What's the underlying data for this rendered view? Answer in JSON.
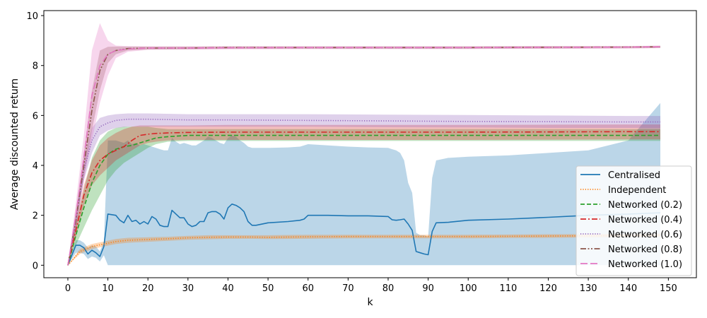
{
  "chart_data": {
    "type": "line",
    "xlabel": "k",
    "ylabel": "Average discounted return",
    "xlim": [
      -6,
      157
    ],
    "ylim": [
      -0.5,
      10.2
    ],
    "xticks": [
      0,
      10,
      20,
      30,
      40,
      50,
      60,
      70,
      80,
      90,
      100,
      110,
      120,
      130,
      140,
      150
    ],
    "yticks": [
      0,
      2,
      4,
      6,
      8,
      10
    ],
    "grid": false,
    "legend_position": "lower-right",
    "series": [
      {
        "name": "Centralised",
        "color": "#1f77b4",
        "style": "solid",
        "x": [
          0,
          2,
          3,
          4,
          5,
          6,
          7,
          8,
          9,
          10,
          12,
          13,
          14,
          15,
          16,
          17,
          18,
          19,
          20,
          21,
          22,
          23,
          24,
          25,
          26,
          27,
          28,
          29,
          30,
          31,
          32,
          33,
          34,
          35,
          36,
          37,
          38,
          39,
          40,
          41,
          42,
          43,
          44,
          45,
          46,
          47,
          50,
          55,
          58,
          59,
          60,
          65,
          70,
          75,
          80,
          81,
          82,
          83,
          84,
          85,
          86,
          87,
          88,
          89,
          90,
          91,
          92,
          95,
          100,
          110,
          120,
          130,
          140,
          148
        ],
        "y": [
          0,
          0.8,
          0.8,
          0.7,
          0.45,
          0.6,
          0.5,
          0.35,
          0.75,
          2.05,
          2.0,
          1.8,
          1.7,
          2.0,
          1.75,
          1.8,
          1.65,
          1.75,
          1.65,
          1.95,
          1.85,
          1.6,
          1.55,
          1.55,
          2.2,
          2.05,
          1.9,
          1.9,
          1.65,
          1.55,
          1.6,
          1.75,
          1.75,
          2.1,
          2.15,
          2.15,
          2.05,
          1.85,
          2.3,
          2.45,
          2.4,
          2.3,
          2.15,
          1.75,
          1.6,
          1.6,
          1.7,
          1.75,
          1.8,
          1.85,
          2.0,
          2.0,
          1.98,
          1.98,
          1.95,
          1.82,
          1.8,
          1.82,
          1.85,
          1.65,
          1.4,
          0.55,
          0.5,
          0.45,
          0.42,
          1.35,
          1.7,
          1.72,
          1.8,
          1.85,
          1.92,
          2.0,
          2.05,
          2.1
        ],
        "band_upper": [
          0,
          1.0,
          1.0,
          0.9,
          0.7,
          0.8,
          0.75,
          0.55,
          0.95,
          5.0,
          5.0,
          4.95,
          4.9,
          5.0,
          4.85,
          4.9,
          4.8,
          4.85,
          4.8,
          4.75,
          4.7,
          4.65,
          4.6,
          4.6,
          5.1,
          4.95,
          4.85,
          4.9,
          4.85,
          4.8,
          4.8,
          4.9,
          5.0,
          5.15,
          5.1,
          5.0,
          4.9,
          4.85,
          5.1,
          5.2,
          5.15,
          5.0,
          4.9,
          4.75,
          4.7,
          4.7,
          4.7,
          4.72,
          4.75,
          4.8,
          4.85,
          4.8,
          4.75,
          4.72,
          4.7,
          4.65,
          4.6,
          4.5,
          4.2,
          3.3,
          2.9,
          1.3,
          1.2,
          1.2,
          1.15,
          3.5,
          4.2,
          4.3,
          4.35,
          4.4,
          4.5,
          4.6,
          5.0,
          6.5
        ],
        "band_lower": [
          0,
          0.5,
          0.5,
          0.45,
          0.25,
          0.35,
          0.3,
          0.15,
          0.4,
          0,
          0,
          0,
          0,
          0,
          0,
          0,
          0,
          0,
          0,
          0,
          0,
          0,
          0,
          0,
          0,
          0,
          0,
          0,
          0,
          0,
          0,
          0,
          0,
          0,
          0,
          0,
          0,
          0,
          0,
          0,
          0,
          0,
          0,
          0,
          0,
          0,
          0,
          0,
          0,
          0,
          0,
          0,
          0,
          0,
          0,
          0,
          0,
          0,
          0,
          0,
          0,
          0,
          0,
          0,
          0,
          0,
          0,
          0,
          0,
          0,
          0,
          0,
          0,
          0
        ]
      },
      {
        "name": "Independent",
        "color": "#ff7f0e",
        "style": "dotted",
        "x": [
          0,
          3,
          6,
          9,
          12,
          15,
          20,
          25,
          30,
          35,
          40,
          45,
          50,
          60,
          70,
          80,
          90,
          100,
          110,
          120,
          130,
          140,
          148
        ],
        "y": [
          0,
          0.55,
          0.75,
          0.85,
          0.95,
          1.0,
          1.03,
          1.06,
          1.1,
          1.12,
          1.13,
          1.13,
          1.12,
          1.14,
          1.15,
          1.15,
          1.15,
          1.15,
          1.16,
          1.17,
          1.18,
          1.19,
          1.2
        ],
        "band_upper": [
          0,
          0.65,
          0.85,
          0.95,
          1.05,
          1.1,
          1.12,
          1.14,
          1.18,
          1.2,
          1.2,
          1.2,
          1.2,
          1.22,
          1.22,
          1.22,
          1.22,
          1.22,
          1.23,
          1.24,
          1.25,
          1.26,
          1.27
        ],
        "band_lower": [
          0,
          0.45,
          0.65,
          0.75,
          0.85,
          0.9,
          0.94,
          0.98,
          1.02,
          1.04,
          1.06,
          1.06,
          1.05,
          1.06,
          1.08,
          1.08,
          1.08,
          1.08,
          1.09,
          1.1,
          1.11,
          1.12,
          1.13
        ]
      },
      {
        "name": "Networked (0.2)",
        "color": "#2ca02c",
        "style": "dashed",
        "x": [
          0,
          2,
          4,
          6,
          8,
          10,
          12,
          14,
          16,
          18,
          20,
          22,
          25,
          30,
          40,
          60,
          80,
          100,
          120,
          140,
          148
        ],
        "y": [
          0,
          1.2,
          2.3,
          3.3,
          4.0,
          4.45,
          4.65,
          4.75,
          4.8,
          4.9,
          5.0,
          5.1,
          5.15,
          5.2,
          5.2,
          5.2,
          5.2,
          5.2,
          5.2,
          5.2,
          5.2
        ],
        "band_upper": [
          0,
          1.6,
          3.0,
          4.3,
          5.0,
          5.35,
          5.5,
          5.55,
          5.55,
          5.55,
          5.55,
          5.5,
          5.45,
          5.45,
          5.45,
          5.45,
          5.45,
          5.45,
          5.45,
          5.45,
          5.45
        ],
        "band_lower": [
          0,
          0.8,
          1.5,
          2.2,
          2.8,
          3.4,
          3.8,
          4.1,
          4.3,
          4.5,
          4.7,
          4.85,
          4.95,
          4.98,
          4.98,
          4.98,
          4.98,
          4.98,
          4.98,
          4.98,
          4.98
        ]
      },
      {
        "name": "Networked (0.4)",
        "color": "#d62728",
        "style": "dashdot",
        "x": [
          0,
          2,
          4,
          6,
          8,
          10,
          12,
          14,
          16,
          18,
          20,
          22,
          25,
          30,
          40,
          60,
          80,
          100,
          120,
          140,
          148
        ],
        "y": [
          0,
          1.4,
          2.8,
          3.7,
          4.2,
          4.45,
          4.6,
          4.75,
          5.0,
          5.2,
          5.25,
          5.28,
          5.3,
          5.32,
          5.33,
          5.33,
          5.33,
          5.33,
          5.34,
          5.35,
          5.35
        ],
        "band_upper": [
          0,
          1.7,
          3.2,
          4.2,
          4.8,
          5.1,
          5.3,
          5.45,
          5.55,
          5.6,
          5.6,
          5.6,
          5.6,
          5.6,
          5.62,
          5.62,
          5.62,
          5.62,
          5.63,
          5.64,
          5.64
        ],
        "band_lower": [
          0,
          1.1,
          2.4,
          3.2,
          3.6,
          3.9,
          4.2,
          4.4,
          4.6,
          4.8,
          4.9,
          4.95,
          5.0,
          5.02,
          5.02,
          5.02,
          5.02,
          5.02,
          5.03,
          5.04,
          5.04
        ]
      },
      {
        "name": "Networked (0.6)",
        "color": "#9467bd",
        "style": "dotted",
        "x": [
          0,
          2,
          4,
          6,
          8,
          10,
          12,
          15,
          20,
          30,
          40,
          60,
          80,
          100,
          120,
          140,
          148
        ],
        "y": [
          0,
          1.8,
          3.8,
          5.0,
          5.55,
          5.7,
          5.8,
          5.85,
          5.85,
          5.82,
          5.82,
          5.8,
          5.78,
          5.76,
          5.75,
          5.74,
          5.74
        ],
        "band_upper": [
          0,
          2.1,
          4.2,
          5.5,
          5.9,
          6.0,
          6.05,
          6.08,
          6.08,
          6.05,
          6.05,
          6.05,
          6.03,
          6.02,
          6.0,
          5.98,
          5.98
        ],
        "band_lower": [
          0,
          1.5,
          3.4,
          4.5,
          5.2,
          5.4,
          5.5,
          5.55,
          5.55,
          5.55,
          5.55,
          5.55,
          5.53,
          5.52,
          5.5,
          5.5,
          5.5
        ]
      },
      {
        "name": "Networked (0.8)",
        "color": "#8c564b",
        "style": "dashdotdot",
        "x": [
          0,
          2,
          4,
          6,
          8,
          10,
          12,
          15,
          20,
          30,
          40,
          60,
          80,
          100,
          120,
          140,
          148
        ],
        "y": [
          0,
          1.8,
          4.0,
          6.2,
          7.8,
          8.45,
          8.6,
          8.68,
          8.7,
          8.7,
          8.72,
          8.72,
          8.72,
          8.72,
          8.73,
          8.74,
          8.75
        ],
        "band_upper": [
          0,
          2.2,
          4.5,
          7.0,
          8.6,
          8.75,
          8.76,
          8.76,
          8.76,
          8.76,
          8.77,
          8.77,
          8.77,
          8.77,
          8.78,
          8.78,
          8.79
        ],
        "band_lower": [
          0,
          1.4,
          3.5,
          5.4,
          7.0,
          8.1,
          8.45,
          8.6,
          8.64,
          8.65,
          8.67,
          8.67,
          8.67,
          8.67,
          8.68,
          8.69,
          8.7
        ]
      },
      {
        "name": "Networked (1.0)",
        "color": "#e377c2",
        "style": "longdash",
        "x": [
          0,
          2,
          4,
          6,
          8,
          10,
          12,
          15,
          20,
          30,
          40,
          60,
          80,
          100,
          120,
          140,
          148
        ],
        "y": [
          0,
          2.0,
          4.3,
          6.8,
          8.0,
          8.45,
          8.6,
          8.66,
          8.7,
          8.7,
          8.71,
          8.72,
          8.72,
          8.72,
          8.73,
          8.74,
          8.75
        ],
        "band_upper": [
          0,
          2.5,
          5.2,
          8.6,
          9.7,
          9.0,
          8.8,
          8.78,
          8.77,
          8.77,
          8.77,
          8.77,
          8.77,
          8.77,
          8.78,
          8.78,
          8.79
        ],
        "band_lower": [
          0,
          1.5,
          3.4,
          5.0,
          6.5,
          7.6,
          8.3,
          8.55,
          8.63,
          8.64,
          8.65,
          8.66,
          8.66,
          8.66,
          8.67,
          8.68,
          8.7
        ]
      }
    ]
  }
}
